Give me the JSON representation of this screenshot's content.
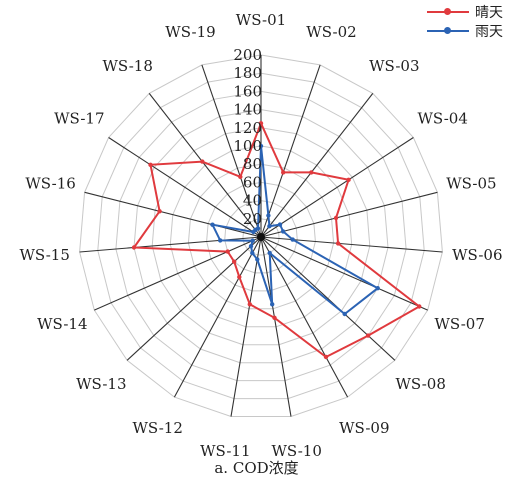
{
  "caption": "a. COD浓度",
  "chart_data": {
    "type": "radar",
    "categories": [
      "WS-01",
      "WS-02",
      "WS-03",
      "WS-04",
      "WS-05",
      "WS-06",
      "WS-07",
      "WS-08",
      "WS-09",
      "WS-10",
      "WS-11",
      "WS-12",
      "WS-13",
      "WS-14",
      "WS-15",
      "WS-16",
      "WS-17",
      "WS-18",
      "WS-19"
    ],
    "radial_ticks": [
      "0",
      "20",
      "40",
      "60",
      "80",
      "100",
      "120",
      "140",
      "160",
      "180",
      "200"
    ],
    "rmax": 200,
    "series": [
      {
        "name": "晴天",
        "color": "#e03a3e",
        "values": [
          125,
          75,
          90,
          115,
          85,
          85,
          190,
          160,
          150,
          90,
          75,
          50,
          40,
          40,
          140,
          115,
          145,
          105,
          70
        ]
      },
      {
        "name": "雨天",
        "color": "#2b63b4",
        "values": [
          100,
          25,
          15,
          25,
          25,
          35,
          140,
          125,
          20,
          75,
          25,
          20,
          15,
          10,
          45,
          55,
          10,
          10,
          10
        ]
      }
    ]
  }
}
